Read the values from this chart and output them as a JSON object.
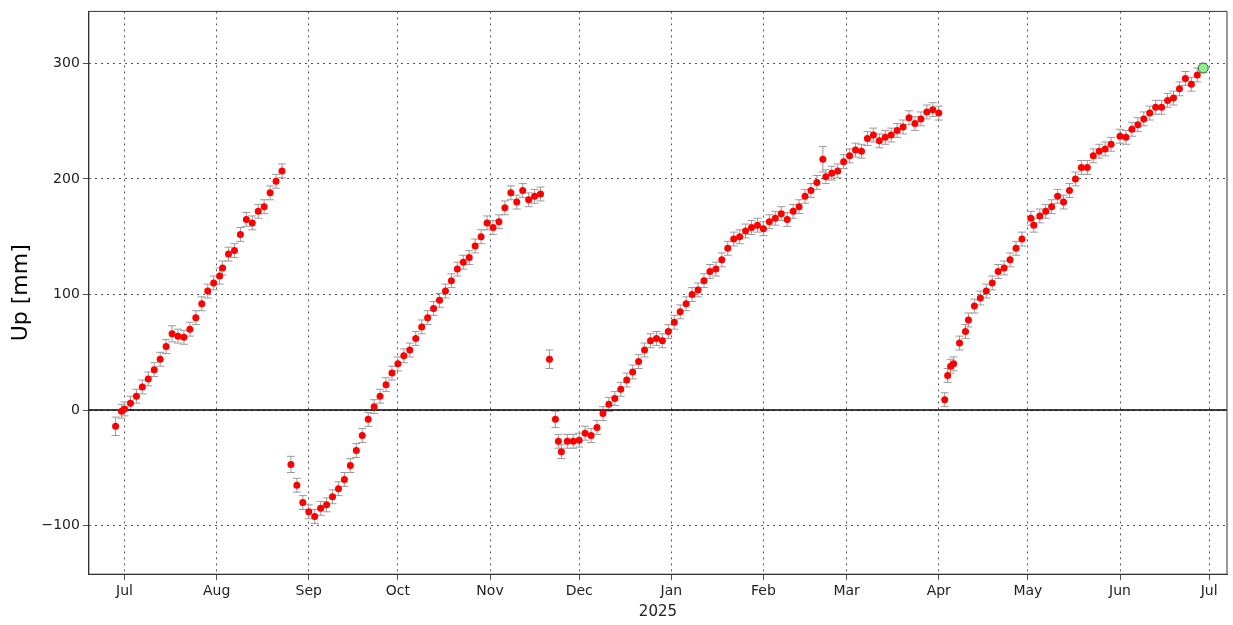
{
  "chart_data": {
    "type": "scatter",
    "xlabel": "2025",
    "ylabel": "Up [mm]",
    "xlim": [
      "2024-06-19",
      "2025-07-07"
    ],
    "xticks": [
      {
        "value": "2024-07-01",
        "label": "Jul"
      },
      {
        "value": "2024-08-01",
        "label": "Aug"
      },
      {
        "value": "2024-09-01",
        "label": "Sep"
      },
      {
        "value": "2024-10-01",
        "label": "Oct"
      },
      {
        "value": "2024-11-01",
        "label": "Nov"
      },
      {
        "value": "2024-12-01",
        "label": "Dec"
      },
      {
        "value": "2025-01-01",
        "label": "Jan"
      },
      {
        "value": "2025-02-01",
        "label": "Feb"
      },
      {
        "value": "2025-03-01",
        "label": "Mar"
      },
      {
        "value": "2025-04-01",
        "label": "Apr"
      },
      {
        "value": "2025-05-01",
        "label": "May"
      },
      {
        "value": "2025-06-01",
        "label": "Jun"
      },
      {
        "value": "2025-07-01",
        "label": "Jul"
      }
    ],
    "ylim": [
      -142,
      345
    ],
    "yticks": [
      {
        "value": -100,
        "label": "−100"
      },
      0,
      100,
      200,
      300
    ],
    "grid": true,
    "marker": "circle",
    "ref_lines": [
      {
        "axis": "y",
        "value": 0,
        "color": "#000000"
      }
    ],
    "series": [
      {
        "color": "#ff0000",
        "x": [
          "2024-06-28",
          "2024-06-30",
          "2024-07-01",
          "2024-07-03",
          "2024-07-05",
          "2024-07-07",
          "2024-07-09",
          "2024-07-11",
          "2024-07-13",
          "2024-07-15",
          "2024-07-17",
          "2024-07-19",
          "2024-07-21",
          "2024-07-23",
          "2024-07-25",
          "2024-07-27",
          "2024-07-29",
          "2024-07-31",
          "2024-08-02",
          "2024-08-03",
          "2024-08-05",
          "2024-08-07",
          "2024-08-09",
          "2024-08-11",
          "2024-08-13",
          "2024-08-15",
          "2024-08-17",
          "2024-08-19",
          "2024-08-21",
          "2024-08-23",
          "2024-08-26",
          "2024-08-28",
          "2024-08-30",
          "2024-09-01",
          "2024-09-03",
          "2024-09-05",
          "2024-09-07",
          "2024-09-09",
          "2024-09-11",
          "2024-09-13",
          "2024-09-15",
          "2024-09-17",
          "2024-09-19",
          "2024-09-21",
          "2024-09-23",
          "2024-09-25",
          "2024-09-27",
          "2024-09-29",
          "2024-10-01",
          "2024-10-03",
          "2024-10-05",
          "2024-10-07",
          "2024-10-09",
          "2024-10-11",
          "2024-10-13",
          "2024-10-15",
          "2024-10-17",
          "2024-10-19",
          "2024-10-21",
          "2024-10-23",
          "2024-10-25",
          "2024-10-27",
          "2024-10-29",
          "2024-10-31",
          "2024-11-02",
          "2024-11-04",
          "2024-11-06",
          "2024-11-08",
          "2024-11-10",
          "2024-11-12",
          "2024-11-14",
          "2024-11-16",
          "2024-11-18",
          "2024-11-21",
          "2024-11-23",
          "2024-11-24",
          "2024-11-25",
          "2024-11-27",
          "2024-11-29",
          "2024-12-01",
          "2024-12-03",
          "2024-12-05",
          "2024-12-07",
          "2024-12-09",
          "2024-12-11",
          "2024-12-13",
          "2024-12-15",
          "2024-12-17",
          "2024-12-19",
          "2024-12-21",
          "2024-12-23",
          "2024-12-25",
          "2024-12-27",
          "2024-12-29",
          "2024-12-31",
          "2025-01-02",
          "2025-01-04",
          "2025-01-06",
          "2025-01-08",
          "2025-01-10",
          "2025-01-12",
          "2025-01-14",
          "2025-01-16",
          "2025-01-18",
          "2025-01-20",
          "2025-01-22",
          "2025-01-24",
          "2025-01-26",
          "2025-01-28",
          "2025-01-30",
          "2025-02-01",
          "2025-02-03",
          "2025-02-05",
          "2025-02-07",
          "2025-02-09",
          "2025-02-11",
          "2025-02-13",
          "2025-02-15",
          "2025-02-17",
          "2025-02-19",
          "2025-02-21",
          "2025-02-22",
          "2025-02-24",
          "2025-02-26",
          "2025-02-28",
          "2025-03-02",
          "2025-03-04",
          "2025-03-06",
          "2025-03-08",
          "2025-03-10",
          "2025-03-12",
          "2025-03-14",
          "2025-03-16",
          "2025-03-18",
          "2025-03-20",
          "2025-03-22",
          "2025-03-24",
          "2025-03-26",
          "2025-03-28",
          "2025-03-30",
          "2025-04-01",
          "2025-04-03",
          "2025-04-04",
          "2025-04-05",
          "2025-04-06",
          "2025-04-08",
          "2025-04-10",
          "2025-04-11",
          "2025-04-13",
          "2025-04-15",
          "2025-04-17",
          "2025-04-19",
          "2025-04-21",
          "2025-04-23",
          "2025-04-25",
          "2025-04-27",
          "2025-04-29",
          "2025-05-02",
          "2025-05-03",
          "2025-05-05",
          "2025-05-07",
          "2025-05-09",
          "2025-05-11",
          "2025-05-13",
          "2025-05-15",
          "2025-05-17",
          "2025-05-19",
          "2025-05-21",
          "2025-05-23",
          "2025-05-25",
          "2025-05-27",
          "2025-05-29",
          "2025-06-01",
          "2025-06-03",
          "2025-06-05",
          "2025-06-07",
          "2025-06-09",
          "2025-06-11",
          "2025-06-13",
          "2025-06-15",
          "2025-06-17",
          "2025-06-19",
          "2025-06-21",
          "2025-06-23",
          "2025-06-25",
          "2025-06-27"
        ],
        "values": [
          -14,
          -1,
          1,
          6,
          12,
          20,
          27,
          35,
          44,
          55,
          66,
          64,
          63,
          70,
          80,
          92,
          103,
          110,
          116,
          123,
          135,
          138,
          152,
          165,
          162,
          172,
          176,
          188,
          198,
          207,
          -47,
          -65,
          -80,
          -88,
          -92,
          -85,
          -82,
          -75,
          -68,
          -60,
          -48,
          -35,
          -22,
          -8,
          3,
          12,
          22,
          32,
          40,
          47,
          52,
          62,
          72,
          80,
          88,
          95,
          103,
          112,
          122,
          128,
          132,
          142,
          150,
          162,
          158,
          163,
          175,
          188,
          180,
          190,
          182,
          185,
          187,
          44,
          -8,
          -27,
          -36,
          -27,
          -27,
          -26,
          -20,
          -22,
          -15,
          -3,
          5,
          10,
          18,
          26,
          33,
          42,
          52,
          60,
          62,
          60,
          68,
          76,
          85,
          92,
          100,
          104,
          112,
          120,
          122,
          130,
          140,
          148,
          150,
          155,
          158,
          160,
          157,
          163,
          166,
          170,
          165,
          172,
          176,
          185,
          190,
          197,
          217,
          202,
          205,
          207,
          215,
          220,
          225,
          224,
          235,
          238,
          233,
          236,
          238,
          242,
          245,
          253,
          248,
          252,
          258,
          260,
          257,
          9,
          30,
          38,
          40,
          58,
          68,
          78,
          90,
          97,
          103,
          110,
          120,
          123,
          130,
          140,
          148,
          166,
          160,
          168,
          172,
          176,
          185,
          180,
          190,
          200,
          210,
          210,
          220,
          224,
          226,
          230,
          237,
          236,
          243,
          247,
          252,
          257,
          262,
          262,
          268,
          270,
          278,
          287,
          282,
          290
        ],
        "errors": [
          8,
          6,
          6,
          6,
          6,
          6,
          6,
          6,
          6,
          6,
          7,
          6,
          6,
          6,
          6,
          6,
          6,
          6,
          7,
          6,
          6,
          6,
          6,
          6,
          6,
          6,
          6,
          6,
          6,
          6,
          7,
          6,
          6,
          6,
          6,
          6,
          6,
          6,
          6,
          6,
          6,
          6,
          6,
          6,
          6,
          6,
          6,
          6,
          6,
          6,
          6,
          6,
          6,
          6,
          6,
          6,
          6,
          6,
          6,
          6,
          6,
          6,
          6,
          6,
          6,
          6,
          6,
          6,
          6,
          6,
          6,
          6,
          6,
          8,
          7,
          6,
          6,
          6,
          6,
          6,
          6,
          6,
          6,
          6,
          6,
          6,
          6,
          6,
          6,
          6,
          6,
          6,
          6,
          6,
          6,
          6,
          6,
          6,
          6,
          6,
          6,
          6,
          6,
          6,
          6,
          6,
          6,
          6,
          6,
          6,
          6,
          6,
          6,
          6,
          6,
          6,
          6,
          6,
          6,
          6,
          11,
          6,
          6,
          6,
          6,
          6,
          6,
          6,
          6,
          6,
          6,
          6,
          6,
          6,
          6,
          6,
          6,
          6,
          6,
          6,
          6,
          6,
          6,
          6,
          6,
          6,
          6,
          6,
          6,
          6,
          6,
          6,
          6,
          6,
          6,
          6,
          6,
          6,
          6,
          6,
          6,
          6,
          6,
          6,
          6,
          6,
          6,
          6,
          6,
          6,
          6,
          6,
          6,
          6,
          6,
          6,
          6,
          6,
          6,
          6,
          6,
          6,
          6,
          6,
          6,
          6
        ]
      },
      {
        "color": "#90ee90",
        "x": [
          "2025-06-29"
        ],
        "values": [
          296
        ],
        "errors": [
          4
        ]
      }
    ]
  }
}
